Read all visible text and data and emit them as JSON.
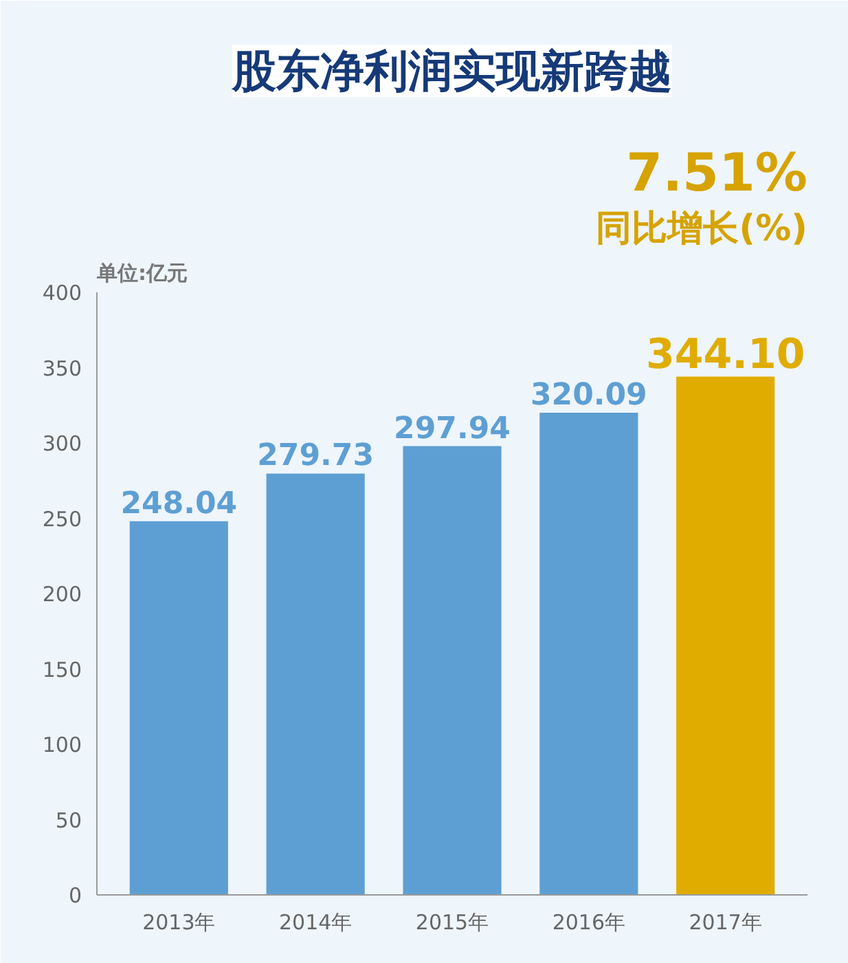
{
  "chart_data": {
    "type": "bar",
    "title": "股东净利润实现新跨越",
    "annotations": [
      "7.51%",
      "同比增长(%)"
    ],
    "ylabel": "单位:亿元",
    "categories": [
      "2013年",
      "2014年",
      "2015年",
      "2016年",
      "2017年"
    ],
    "values": [
      248.04,
      279.73,
      297.94,
      320.09,
      344.1
    ],
    "value_labels": [
      "248.04",
      "279.73",
      "297.94",
      "320.09",
      "344.10"
    ],
    "colors": [
      "#5e9fd3",
      "#5e9fd3",
      "#5e9fd3",
      "#5e9fd3",
      "#e0ac00"
    ],
    "ylim": [
      0,
      400
    ],
    "yticks": [
      0,
      50,
      100,
      150,
      200,
      250,
      300,
      350,
      400
    ],
    "grid": false
  }
}
